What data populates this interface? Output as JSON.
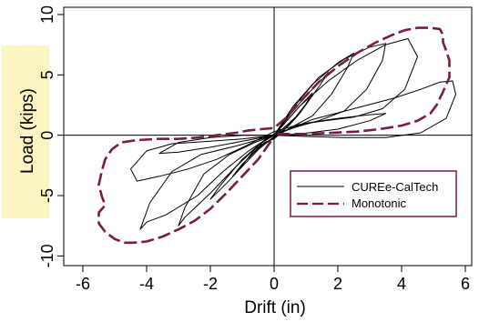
{
  "chart_data": {
    "type": "line",
    "xlabel": "Drift (in)",
    "ylabel": "Load (kips)",
    "xlim": [
      -6.6,
      6.2
    ],
    "ylim": [
      -10.8,
      10.6
    ],
    "x_ticks": [
      -6,
      -4,
      -2,
      0,
      2,
      4,
      6
    ],
    "y_ticks": [
      -10,
      -5,
      0,
      5,
      10
    ],
    "grid": false,
    "crosshair_at_origin": true,
    "legend_position": "lower-right",
    "colors": {
      "cyclic": "#000000",
      "monotonic": "#7a1a4a",
      "ylabel_background": "#fbf3c0",
      "legend_border": "#7a1a4a"
    },
    "series": [
      {
        "name": "CUREe-CalTech",
        "style": "solid",
        "loops": [
          [
            [
              0,
              0
            ],
            [
              0.3,
              0.6
            ],
            [
              0.6,
              1.2
            ],
            [
              0.8,
              1.8
            ],
            [
              0.6,
              1.2
            ],
            [
              0.3,
              0.4
            ],
            [
              0,
              -0.3
            ],
            [
              -0.3,
              -0.6
            ],
            [
              -0.6,
              -1.3
            ],
            [
              -0.8,
              -1.9
            ],
            [
              -0.6,
              -1.3
            ],
            [
              -0.3,
              -0.4
            ],
            [
              0,
              0
            ]
          ],
          [
            [
              0,
              0
            ],
            [
              0.4,
              1.2
            ],
            [
              0.8,
              2.4
            ],
            [
              1.2,
              3.5
            ],
            [
              1.0,
              2.6
            ],
            [
              0.5,
              0.9
            ],
            [
              0,
              -0.2
            ],
            [
              -0.5,
              -1.1
            ],
            [
              -1.0,
              -2.4
            ],
            [
              -1.3,
              -3.4
            ],
            [
              -1.0,
              -2.5
            ],
            [
              -0.5,
              -0.8
            ],
            [
              0,
              0
            ]
          ],
          [
            [
              0,
              0
            ],
            [
              0.5,
              1.7
            ],
            [
              1.0,
              3.3
            ],
            [
              1.5,
              4.6
            ],
            [
              1.7,
              5.2
            ],
            [
              1.4,
              4.0
            ],
            [
              0.8,
              1.8
            ],
            [
              0.3,
              0.6
            ],
            [
              0,
              -0.1
            ],
            [
              -0.5,
              -1.2
            ],
            [
              -1.0,
              -2.6
            ],
            [
              -1.5,
              -4.0
            ],
            [
              -2.0,
              -5.3
            ],
            [
              -1.7,
              -4.2
            ],
            [
              -1.0,
              -2.0
            ],
            [
              -0.4,
              -0.6
            ],
            [
              0,
              0
            ]
          ],
          [
            [
              0,
              0
            ],
            [
              0.6,
              2.4
            ],
            [
              1.2,
              4.2
            ],
            [
              2.0,
              6.0
            ],
            [
              2.5,
              6.8
            ],
            [
              2.3,
              5.6
            ],
            [
              1.8,
              3.4
            ],
            [
              1.2,
              1.6
            ],
            [
              0.5,
              0.6
            ],
            [
              0,
              -0.2
            ],
            [
              -0.6,
              -1.1
            ],
            [
              -1.2,
              -2.6
            ],
            [
              -2.0,
              -4.8
            ],
            [
              -2.8,
              -6.8
            ],
            [
              -3.0,
              -7.5
            ],
            [
              -2.8,
              -6.0
            ],
            [
              -2.2,
              -3.2
            ],
            [
              -1.4,
              -1.6
            ],
            [
              -0.6,
              -0.6
            ],
            [
              0,
              0
            ]
          ],
          [
            [
              0,
              0
            ],
            [
              0.7,
              2.6
            ],
            [
              1.4,
              4.8
            ],
            [
              2.2,
              6.3
            ],
            [
              3.0,
              7.3
            ],
            [
              3.5,
              7.6
            ],
            [
              3.4,
              6.2
            ],
            [
              2.9,
              3.8
            ],
            [
              2.2,
              2.0
            ],
            [
              1.4,
              1.2
            ],
            [
              0.6,
              0.6
            ],
            [
              0,
              0.1
            ],
            [
              -0.8,
              -1.3
            ],
            [
              -1.6,
              -3.0
            ],
            [
              -2.4,
              -5.0
            ],
            [
              -3.4,
              -6.6
            ],
            [
              -4.0,
              -7.2
            ],
            [
              -4.2,
              -7.8
            ],
            [
              -3.9,
              -5.6
            ],
            [
              -3.2,
              -3.0
            ],
            [
              -2.3,
              -1.6
            ],
            [
              -1.2,
              -0.9
            ],
            [
              0,
              0
            ]
          ],
          [
            [
              0,
              0
            ],
            [
              0.8,
              2.4
            ],
            [
              1.7,
              4.5
            ],
            [
              2.6,
              6.2
            ],
            [
              3.5,
              7.5
            ],
            [
              4.2,
              8.0
            ],
            [
              4.5,
              6.5
            ],
            [
              4.1,
              3.8
            ],
            [
              3.4,
              2.2
            ],
            [
              2.5,
              1.5
            ],
            [
              1.6,
              1.2
            ],
            [
              0.8,
              0.9
            ],
            [
              0,
              0.3
            ],
            [
              -0.9,
              -0.9
            ],
            [
              -1.8,
              -2.0
            ],
            [
              -2.7,
              -2.8
            ],
            [
              -3.6,
              -3.4
            ],
            [
              -4.3,
              -3.8
            ],
            [
              -4.5,
              -2.8
            ],
            [
              -4.0,
              -1.3
            ],
            [
              -3.2,
              -0.7
            ],
            [
              -2.0,
              -0.5
            ],
            [
              -1.0,
              -0.3
            ],
            [
              0,
              0
            ]
          ],
          [
            [
              0,
              0
            ],
            [
              1.0,
              1.0
            ],
            [
              2.0,
              1.4
            ],
            [
              3.0,
              1.7
            ],
            [
              3.5,
              1.8
            ],
            [
              3.0,
              1.2
            ],
            [
              2.0,
              0.5
            ],
            [
              0.8,
              0.1
            ],
            [
              0,
              0
            ],
            [
              -1.0,
              -0.5
            ],
            [
              -2.0,
              -1.0
            ],
            [
              -3.0,
              -1.4
            ],
            [
              -3.6,
              -1.5
            ],
            [
              -3.0,
              -0.6
            ],
            [
              -2.0,
              -0.2
            ],
            [
              -1.0,
              0.0
            ],
            [
              0,
              0
            ]
          ],
          [
            [
              0,
              0
            ],
            [
              1.2,
              1.3
            ],
            [
              2.5,
              2.2
            ],
            [
              3.8,
              3.1
            ],
            [
              4.6,
              3.8
            ],
            [
              5.2,
              4.4
            ],
            [
              5.6,
              4.5
            ],
            [
              5.7,
              3.4
            ],
            [
              5.4,
              1.4
            ],
            [
              4.6,
              0.2
            ],
            [
              3.5,
              -0.2
            ],
            [
              2.2,
              -0.2
            ],
            [
              1.0,
              -0.1
            ],
            [
              0,
              0
            ]
          ]
        ]
      },
      {
        "name": "Monotonic",
        "style": "dashed",
        "points": [
          [
            -0.1,
            -0.5
          ],
          [
            -0.5,
            -2.0
          ],
          [
            -1.0,
            -3.4
          ],
          [
            -1.5,
            -4.8
          ],
          [
            -2.0,
            -6.1
          ],
          [
            -2.5,
            -7.1
          ],
          [
            -3.0,
            -7.8
          ],
          [
            -3.5,
            -8.4
          ],
          [
            -4.0,
            -8.8
          ],
          [
            -4.4,
            -8.9
          ],
          [
            -4.7,
            -8.9
          ],
          [
            -5.0,
            -8.6
          ],
          [
            -5.3,
            -8.0
          ],
          [
            -5.5,
            -7.3
          ],
          [
            -5.5,
            -6.4
          ],
          [
            -5.3,
            -5.8
          ],
          [
            -5.4,
            -5.1
          ],
          [
            -5.5,
            -4.1
          ],
          [
            -5.4,
            -2.9
          ],
          [
            -5.3,
            -2.0
          ],
          [
            -5.1,
            -1.2
          ],
          [
            -4.8,
            -0.6
          ],
          [
            -4.3,
            -0.4
          ],
          [
            -3.6,
            -0.3
          ],
          [
            -3.0,
            -0.3
          ],
          [
            -2.4,
            -0.2
          ],
          [
            -1.8,
            0.0
          ],
          [
            -1.2,
            0.2
          ],
          [
            -0.8,
            0.4
          ],
          [
            -0.4,
            0.5
          ],
          [
            0,
            0.6
          ],
          [
            0.4,
            1.5
          ],
          [
            0.9,
            3.0
          ],
          [
            1.4,
            4.4
          ],
          [
            2.0,
            5.7
          ],
          [
            2.6,
            6.8
          ],
          [
            3.2,
            7.7
          ],
          [
            3.7,
            8.3
          ],
          [
            4.1,
            8.7
          ],
          [
            4.5,
            8.9
          ],
          [
            4.9,
            8.9
          ],
          [
            5.2,
            8.8
          ],
          [
            5.3,
            8.3
          ],
          [
            5.3,
            7.7
          ],
          [
            5.4,
            7.0
          ],
          [
            5.5,
            6.2
          ],
          [
            5.5,
            4.8
          ],
          [
            5.3,
            3.6
          ],
          [
            5.1,
            2.5
          ],
          [
            4.9,
            1.8
          ],
          [
            4.5,
            1.2
          ],
          [
            4.0,
            0.8
          ],
          [
            3.3,
            0.5
          ],
          [
            2.6,
            0.3
          ],
          [
            1.8,
            0.2
          ],
          [
            1.0,
            0.1
          ],
          [
            0.4,
            0.1
          ],
          [
            0,
            0.1
          ]
        ]
      }
    ]
  }
}
